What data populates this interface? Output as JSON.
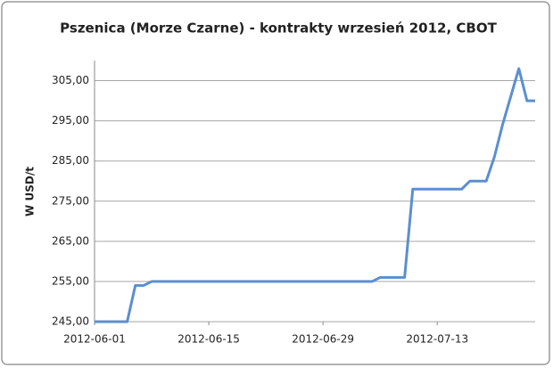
{
  "chart_data": {
    "type": "line",
    "title": "Pszenica (Morze Czarne) - kontrakty wrzesień 2012, CBOT",
    "y_label": "W USD/t",
    "x": [
      "2012-06-01",
      "2012-06-04",
      "2012-06-05",
      "2012-06-06",
      "2012-06-07",
      "2012-06-08",
      "2012-07-05",
      "2012-07-06",
      "2012-07-09",
      "2012-07-10",
      "2012-07-16",
      "2012-07-17",
      "2012-07-19",
      "2012-07-20",
      "2012-07-21",
      "2012-07-22",
      "2012-07-23",
      "2012-07-24",
      "2012-07-25"
    ],
    "series": [
      {
        "name": "Pszenica",
        "color": "#5b8fd0",
        "values": [
          245,
          245,
          245,
          254,
          254,
          255,
          255,
          256,
          256,
          278,
          278,
          280,
          280,
          286,
          294,
          301,
          308,
          300,
          300
        ]
      }
    ],
    "xlim": [
      "2012-06-01",
      "2012-07-25"
    ],
    "xticks": [
      "2012-06-01",
      "2012-06-15",
      "2012-06-29",
      "2012-07-13"
    ],
    "ylim": [
      245,
      310
    ],
    "yticks": [
      {
        "value": 245,
        "label": "245,00"
      },
      {
        "value": 255,
        "label": "255,00"
      },
      {
        "value": 265,
        "label": "265,00"
      },
      {
        "value": 275,
        "label": "275,00"
      },
      {
        "value": 285,
        "label": "285,00"
      },
      {
        "value": 295,
        "label": "295,00"
      },
      {
        "value": 305,
        "label": "305,00"
      }
    ],
    "grid": true
  }
}
